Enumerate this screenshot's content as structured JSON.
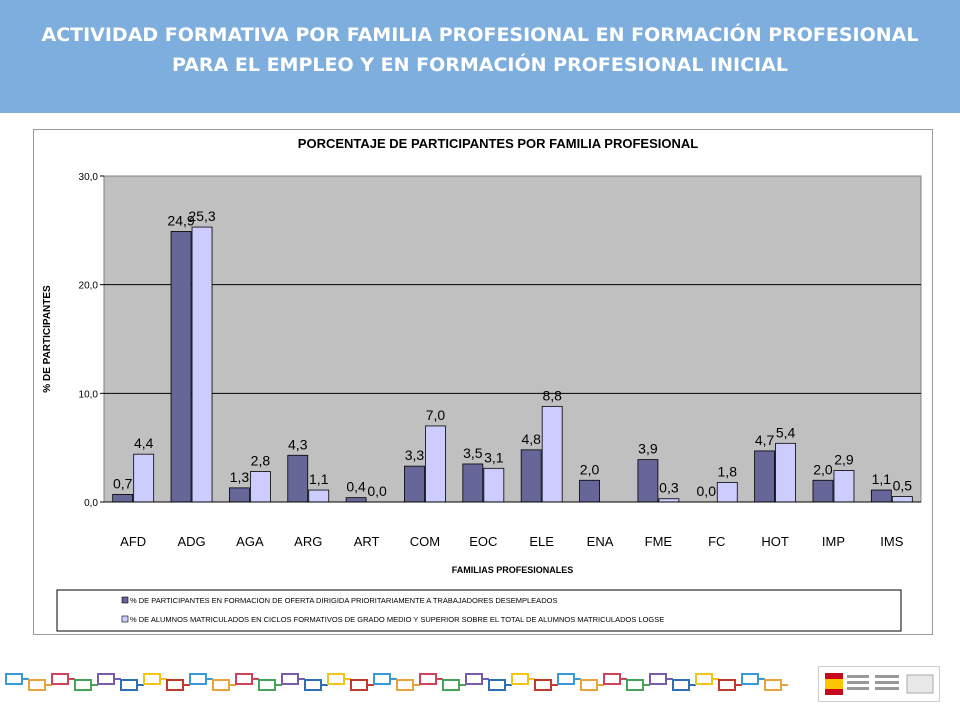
{
  "header": {
    "line1": "ACTIVIDAD FORMATIVA POR FAMILIA PROFESIONAL EN FORMACIÓN PROFESIONAL",
    "line2": "PARA EL EMPLEO Y EN FORMACIÓN PROFESIONAL INICIAL"
  },
  "colors": {
    "header_bg": "#7eaedd",
    "series1": "#666699",
    "series2": "#ccccff",
    "plot_bg": "#c0c0c0"
  },
  "chart_data": {
    "type": "bar",
    "title": "PORCENTAJE DE PARTICIPANTES POR FAMILIA PROFESIONAL",
    "xlabel": "FAMILIAS PROFESIONALES",
    "ylabel": "% DE PARTICIPANTES",
    "ylim": [
      0,
      30
    ],
    "yticks": [
      "0,0",
      "10,0",
      "20,0",
      "30,0"
    ],
    "grid": true,
    "legend_position": "bottom",
    "categories": [
      "AFD",
      "ADG",
      "AGA",
      "ARG",
      "ART",
      "COM",
      "EOC",
      "ELE",
      "ENA",
      "FME",
      "FC",
      "HOT",
      "IMP",
      "IMS"
    ],
    "series": [
      {
        "name": "% DE PARTICIPANTES EN FORMACION DE OFERTA DIRIGIDA PRIORITARIAMENTE A TRABAJADORES DESEMPLEADOS",
        "values": [
          0.7,
          24.9,
          1.3,
          4.3,
          0.4,
          3.3,
          3.5,
          4.8,
          2.0,
          3.9,
          0.0,
          4.7,
          2.0,
          1.1
        ],
        "labels": [
          "0,7",
          "24,9",
          "1,3",
          "4,3",
          "0,4",
          "3,3",
          "3,5",
          "4,8",
          "2,0",
          "3,9",
          "0,0",
          "4,7",
          "2,0",
          "1,1"
        ]
      },
      {
        "name": "% DE ALUMNOS MATRICULADOS EN CICLOS FORMATIVOS DE GRADO MEDIO Y SUPERIOR SOBRE EL TOTAL DE ALUMNOS MATRICULADOS LOGSE",
        "values": [
          4.4,
          25.3,
          2.8,
          1.1,
          0.0,
          7.0,
          3.1,
          8.8,
          null,
          0.3,
          1.8,
          5.4,
          2.9,
          0.5
        ],
        "labels": [
          "4,4",
          "25,3",
          "2,8",
          "1,1",
          "0,0",
          "7,0",
          "3,1",
          "8,8",
          "",
          "0,3",
          "1,8",
          "5,4",
          "2,9",
          "0,5"
        ]
      }
    ]
  }
}
